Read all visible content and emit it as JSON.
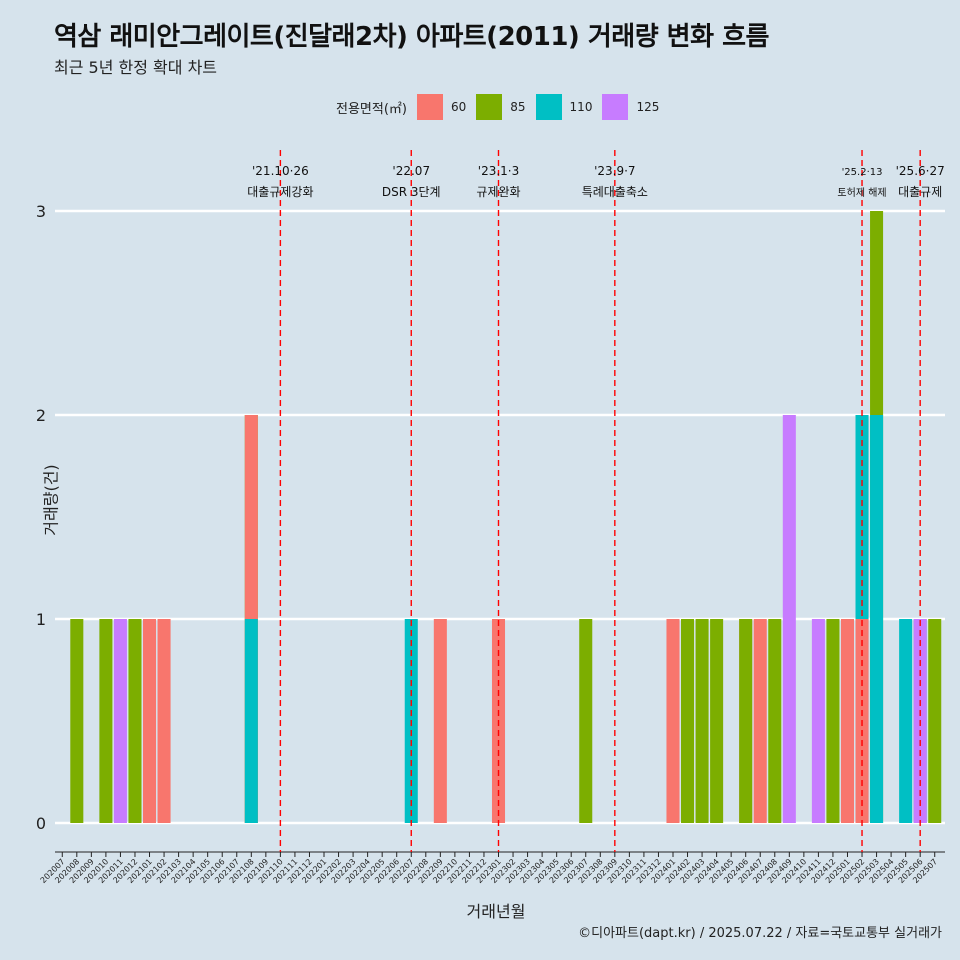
{
  "title": "역삼 래미안그레이트(진달래2차) 아파트(2011) 거래량 변화 흐름",
  "subtitle": "최근 5년 한정 확대 차트",
  "caption": "©디아파트(dapt.kr) / 2025.07.22 / 자료=국토교통부 실거래가",
  "legend": {
    "title": "전용면적(㎡)",
    "items": [
      {
        "label": "60",
        "color": "#F8766D"
      },
      {
        "label": "85",
        "color": "#7CAE00"
      },
      {
        "label": "110",
        "color": "#00BFC4"
      },
      {
        "label": "125",
        "color": "#C77CFF"
      }
    ]
  },
  "chart_data": {
    "type": "bar",
    "title": "역삼 래미안그레이트(진달래2차) 아파트(2011) 거래량 변화 흐름",
    "subtitle": "최근 5년 한정 확대 차트",
    "xlabel": "거래년월",
    "ylabel": "거래량(건)",
    "ylim": [
      0,
      3
    ],
    "yticks": [
      "0",
      "1",
      "2",
      "3"
    ],
    "grid": "horizontal",
    "legend_position": "top",
    "categories": [
      "202007",
      "202008",
      "202009",
      "202010",
      "202011",
      "202012",
      "202101",
      "202102",
      "202103",
      "202104",
      "202105",
      "202106",
      "202107",
      "202108",
      "202109",
      "202110",
      "202111",
      "202112",
      "202201",
      "202202",
      "202203",
      "202204",
      "202205",
      "202206",
      "202207",
      "202208",
      "202209",
      "202210",
      "202211",
      "202212",
      "202301",
      "202302",
      "202303",
      "202304",
      "202305",
      "202306",
      "202307",
      "202308",
      "202309",
      "202310",
      "202311",
      "202312",
      "202401",
      "202402",
      "202403",
      "202404",
      "202405",
      "202406",
      "202407",
      "202408",
      "202409",
      "202410",
      "202411",
      "202412",
      "202501",
      "202502",
      "202503",
      "202504",
      "202505",
      "202506",
      "202507"
    ],
    "bars": [
      {
        "month": "202008",
        "area": "85",
        "value": 1
      },
      {
        "month": "202010",
        "area": "85",
        "value": 1
      },
      {
        "month": "202011",
        "area": "125",
        "value": 1
      },
      {
        "month": "202012",
        "area": "85",
        "value": 1
      },
      {
        "month": "202101",
        "area": "60",
        "value": 1
      },
      {
        "month": "202102",
        "area": "60",
        "value": 1
      },
      {
        "month": "202108",
        "area": "85",
        "value": 2
      },
      {
        "month": "202108",
        "area": "60",
        "value": 2
      },
      {
        "month": "202108",
        "area": "110",
        "value": 1
      },
      {
        "month": "202207",
        "area": "110",
        "value": 1
      },
      {
        "month": "202209",
        "area": "60",
        "value": 1
      },
      {
        "month": "202301",
        "area": "60",
        "value": 1
      },
      {
        "month": "202307",
        "area": "85",
        "value": 1
      },
      {
        "month": "202401",
        "area": "60",
        "value": 1
      },
      {
        "month": "202402",
        "area": "85",
        "value": 1
      },
      {
        "month": "202403",
        "area": "85",
        "value": 1
      },
      {
        "month": "202404",
        "area": "85",
        "value": 1
      },
      {
        "month": "202406",
        "area": "60",
        "value": 1
      },
      {
        "month": "202406",
        "area": "85",
        "value": 1
      },
      {
        "month": "202407",
        "area": "60",
        "value": 1
      },
      {
        "month": "202408",
        "area": "85",
        "value": 1
      },
      {
        "month": "202409",
        "area": "125",
        "value": 2
      },
      {
        "month": "202411",
        "area": "125",
        "value": 1
      },
      {
        "month": "202412",
        "area": "85",
        "value": 1
      },
      {
        "month": "202501",
        "area": "60",
        "value": 1
      },
      {
        "month": "202502",
        "area": "110",
        "value": 2
      },
      {
        "month": "202502",
        "area": "60",
        "value": 1
      },
      {
        "month": "202503",
        "area": "85",
        "value": 3
      },
      {
        "month": "202503",
        "area": "110",
        "value": 2
      },
      {
        "month": "202505",
        "area": "110",
        "value": 1
      },
      {
        "month": "202506",
        "area": "110",
        "value": 1
      },
      {
        "month": "202506",
        "area": "125",
        "value": 1
      },
      {
        "month": "202507",
        "area": "85",
        "value": 1
      }
    ],
    "annotations": [
      {
        "month": "202110",
        "date": "'21.10·26",
        "label": "대출규제강화",
        "size": "normal"
      },
      {
        "month": "202207",
        "date": "'22.07",
        "label": "DSR 3단계",
        "size": "normal"
      },
      {
        "month": "202301",
        "date": "'23.1·3",
        "label": "규제완화",
        "size": "normal"
      },
      {
        "month": "202309",
        "date": "'23.9·7",
        "label": "특례대출축소",
        "size": "normal"
      },
      {
        "month": "202502",
        "date": "'25.2·13",
        "label": "토허제 해제",
        "size": "small"
      },
      {
        "month": "202506",
        "date": "'25.6·27",
        "label": "대출규제",
        "size": "normal"
      }
    ]
  }
}
